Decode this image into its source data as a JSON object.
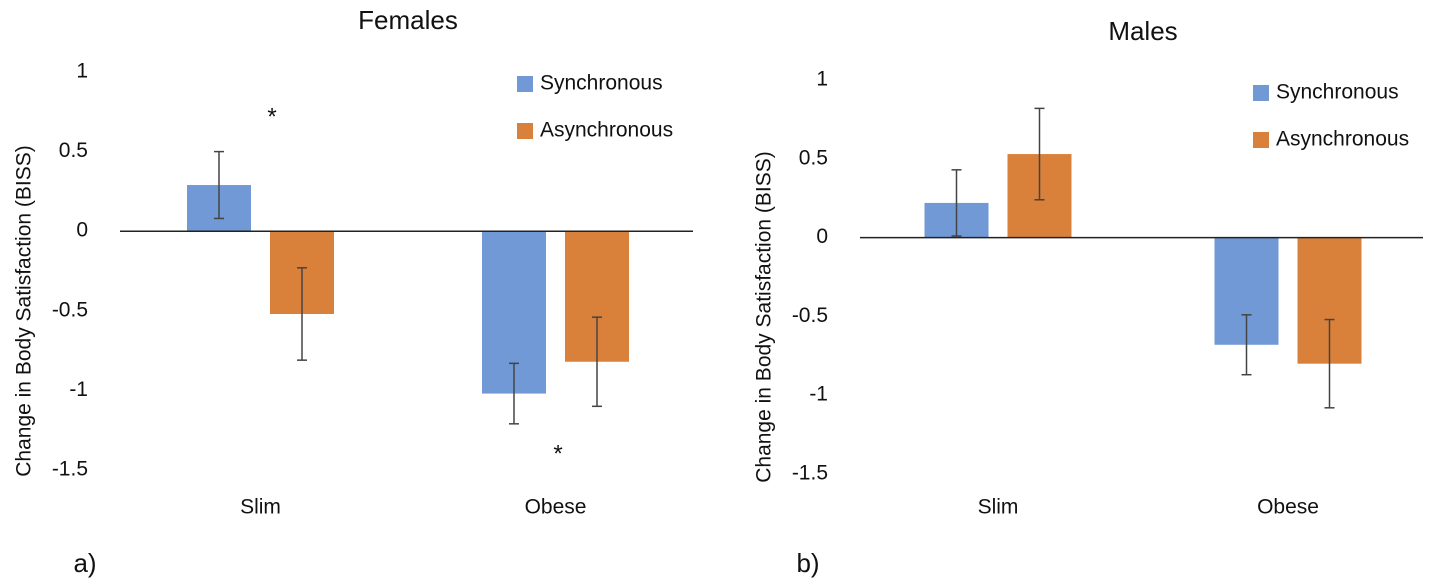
{
  "chart_data": [
    {
      "type": "bar",
      "title": "Females",
      "ylabel": "Change in Body Satisfaction (BISS)",
      "categories": [
        "Slim",
        "Obese"
      ],
      "series": [
        {
          "name": "Synchronous",
          "color": "#7099d6",
          "values": [
            0.29,
            -1.02
          ],
          "errors": [
            0.21,
            0.19
          ]
        },
        {
          "name": "Asynchronous",
          "color": "#d9803a",
          "values": [
            -0.52,
            -0.82
          ],
          "errors": [
            0.29,
            0.28
          ]
        }
      ],
      "ylim": [
        -1.5,
        1
      ],
      "yticks": [
        1,
        0.5,
        0,
        -0.5,
        -1,
        -1.5
      ],
      "grid": false,
      "legend": "top-right",
      "annotations": [
        "*",
        "*"
      ],
      "panel_label": "a)"
    },
    {
      "type": "bar",
      "title": "Males",
      "ylabel": "Change in Body Satisfaction (BISS)",
      "categories": [
        "Slim",
        "Obese"
      ],
      "series": [
        {
          "name": "Synchronous",
          "color": "#7099d6",
          "values": [
            0.22,
            -0.68
          ],
          "errors": [
            0.21,
            0.19
          ]
        },
        {
          "name": "Asynchronous",
          "color": "#d9803a",
          "values": [
            0.53,
            -0.8
          ],
          "errors": [
            0.29,
            0.28
          ]
        }
      ],
      "ylim": [
        -1.5,
        1
      ],
      "yticks": [
        1,
        0.5,
        0,
        -0.5,
        -1,
        -1.5
      ],
      "grid": false,
      "legend": "top-right",
      "panel_label": "b)"
    }
  ]
}
